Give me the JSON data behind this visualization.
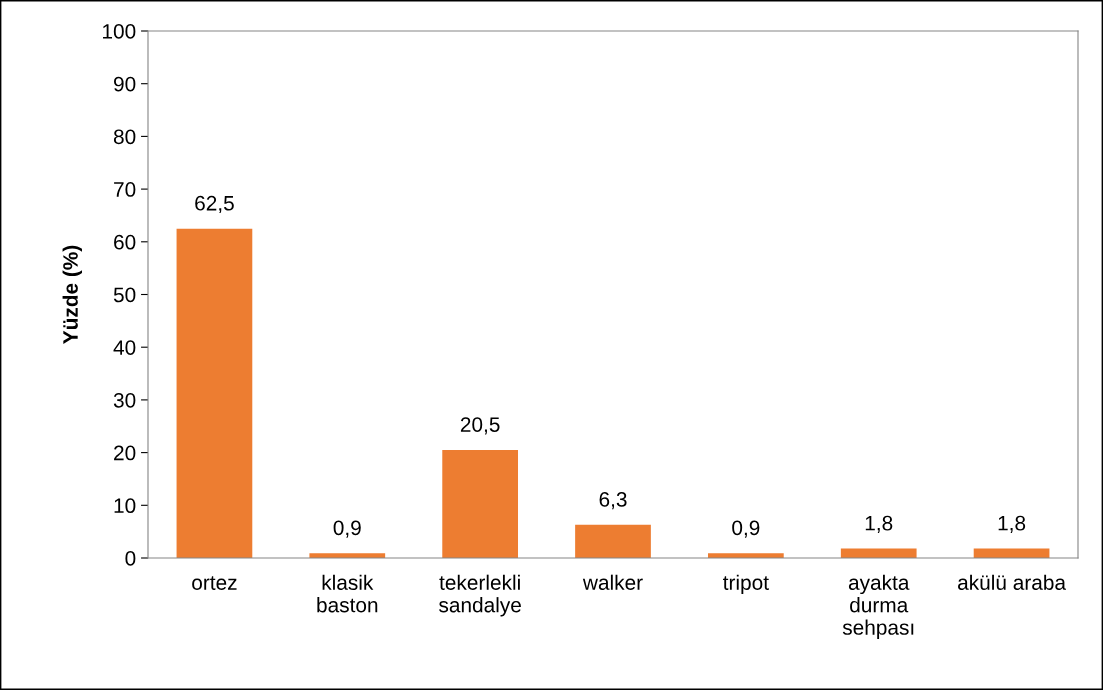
{
  "chart_data": {
    "type": "bar",
    "ylabel": "Yüzde (%)",
    "categories": [
      "ortez",
      "klasik\nbaston",
      "tekerlekli\nsandalye",
      "walker",
      "tripot",
      "ayakta\ndurma\nsehpası",
      "akülü araba"
    ],
    "values": [
      62.5,
      0.9,
      20.5,
      6.3,
      0.9,
      1.8,
      1.8
    ],
    "value_labels": [
      "62,5",
      "0,9",
      "20,5",
      "6,3",
      "0,9",
      "1,8",
      "1,8"
    ],
    "color": "#ed7d31",
    "ylim": [
      0,
      100
    ],
    "yticks": [
      0,
      10,
      20,
      30,
      40,
      50,
      60,
      70,
      80,
      90,
      100
    ],
    "grid": false,
    "legend": false
  }
}
